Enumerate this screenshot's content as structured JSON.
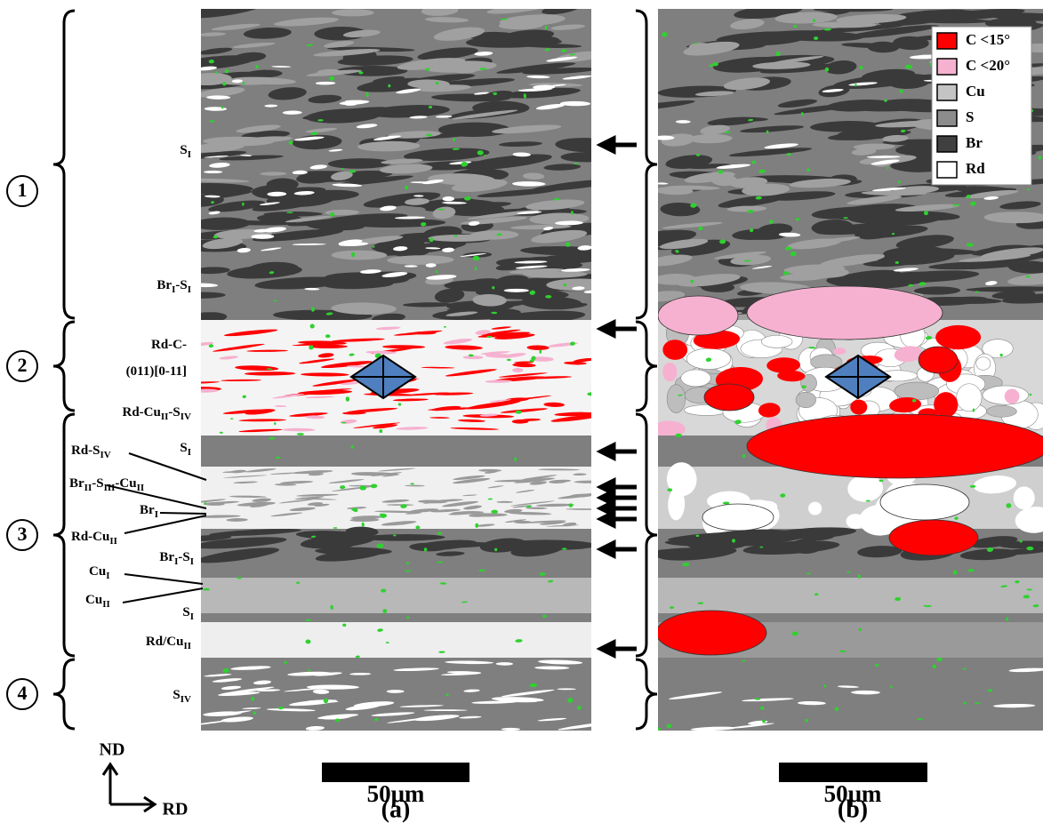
{
  "zones": [
    "1",
    "2",
    "3",
    "4"
  ],
  "labels": [
    {
      "parts": [
        "S",
        "I"
      ]
    },
    {
      "parts": [
        "Br",
        "I",
        "-S",
        "I"
      ]
    },
    {
      "parts": [
        "Rd-C-"
      ]
    },
    {
      "parts": [
        "(011)[0-11]"
      ]
    },
    {
      "parts": [
        "Rd-Cu",
        "II",
        "-S",
        "IV"
      ]
    },
    {
      "parts": [
        "S",
        "I"
      ]
    },
    {
      "parts": [
        "Rd-S",
        "IV"
      ]
    },
    {
      "parts": [
        "Br",
        "II",
        "-S",
        "III",
        "-Cu",
        "II"
      ]
    },
    {
      "parts": [
        "Br",
        "I"
      ]
    },
    {
      "parts": [
        "Rd-Cu",
        "II"
      ]
    },
    {
      "parts": [
        "Br",
        "I",
        "-S",
        "I"
      ]
    },
    {
      "parts": [
        "Cu",
        "I"
      ]
    },
    {
      "parts": [
        "Cu",
        "II"
      ]
    },
    {
      "parts": [
        "S",
        "I"
      ]
    },
    {
      "parts": [
        "Rd/Cu",
        "II"
      ]
    },
    {
      "parts": [
        "S",
        "IV"
      ]
    }
  ],
  "legend": [
    {
      "label": "C <15°",
      "color": "#ff0000"
    },
    {
      "label": "C <20°",
      "color": "#f6b1d0"
    },
    {
      "label": "Cu",
      "color": "#c4c4c4"
    },
    {
      "label": "S",
      "color": "#8c8c8c"
    },
    {
      "label": "Br",
      "color": "#404040"
    },
    {
      "label": "Rd",
      "color": "#ffffff"
    }
  ],
  "scale_bar": "50μm",
  "panels": [
    "(a)",
    "(b)"
  ],
  "axes": {
    "nd": "ND",
    "rd": "RD"
  }
}
